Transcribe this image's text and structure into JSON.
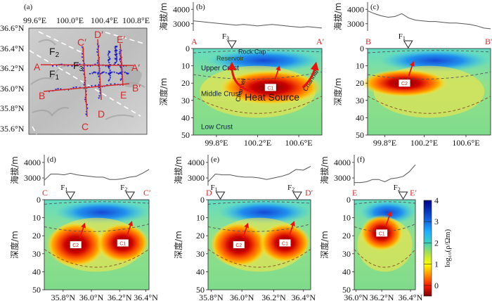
{
  "figure": {
    "panels": {
      "a": {
        "label": "(a)",
        "lon_ticks": [
          "99.6°E",
          "100.0°E",
          "100.4°E",
          "100.8°E"
        ],
        "lat_ticks": [
          "36.6°N",
          "36.4°N",
          "36.2°N",
          "36.0°N",
          "35.8°N",
          "35.6°N"
        ],
        "faults": [
          "F2",
          "F1",
          "F3"
        ],
        "profiles": [
          {
            "start": "A",
            "end": "A′"
          },
          {
            "start": "B",
            "end": "B′"
          },
          {
            "start": "C",
            "end": "C′"
          },
          {
            "start": "D",
            "end": "D′"
          },
          {
            "start": "E",
            "end": "E′"
          }
        ],
        "colors": {
          "profile": "#d42a2a",
          "station": "#1a1ad0",
          "fault": "#ffffff"
        }
      },
      "b": {
        "label": "(b)",
        "start": "A",
        "end": "A′",
        "elev_ticks": [
          "4000",
          "3000"
        ],
        "depth_ticks": [
          "0",
          "10",
          "20",
          "30",
          "40",
          "50"
        ],
        "x_ticks": [
          "99.8°E",
          "100.2°E",
          "100.6°E"
        ],
        "elev_profile": [
          3200,
          3150,
          3100,
          3050,
          3000,
          2950,
          2900,
          2950,
          2900,
          2850,
          2900,
          2950,
          2900,
          2850,
          2800,
          2750,
          2800,
          2750,
          2700
        ],
        "fault_markers": [
          {
            "name": "F",
            "sub": "3"
          }
        ],
        "annotations": [
          "Rock Cap",
          "Reservoir",
          "Upper Crust",
          "Middle Crust",
          "Low Crust",
          "Channel",
          "Channel",
          "Heat Source"
        ],
        "conductor": "C1"
      },
      "c": {
        "label": "(c)",
        "start": "B",
        "end": "B′",
        "elev_ticks": [
          "4000",
          "3000"
        ],
        "depth_ticks": [
          "0",
          "10",
          "20",
          "30",
          "40",
          "50"
        ],
        "x_ticks": [
          "99.8°E",
          "100.2°E",
          "100.6°E"
        ],
        "elev_profile": [
          3900,
          3700,
          3550,
          3450,
          3500,
          3700,
          3400,
          3250,
          3200,
          3150,
          3150,
          3100,
          3050,
          3050,
          3000,
          2950,
          2850,
          2700,
          2650
        ],
        "fault_markers": [
          {
            "name": "F",
            "sub": "1"
          }
        ],
        "conductor": "C2"
      },
      "d": {
        "label": "(d)",
        "start": "C",
        "end": "C′",
        "elev_ticks": [
          "4000",
          "3000"
        ],
        "depth_ticks": [
          "0",
          "10",
          "20",
          "30",
          "40",
          "50"
        ],
        "x_ticks": [
          "35.8°N",
          "36.0°N",
          "36.2°N",
          "36.4°N"
        ],
        "elev_profile": [
          2850,
          3250,
          3250,
          3200,
          3300,
          3200,
          3150,
          3100,
          3050,
          3050,
          2900,
          2900,
          2950,
          3050,
          3100,
          3300,
          3550
        ],
        "fault_markers": [
          {
            "name": "F",
            "sub": "1"
          },
          {
            "name": "F",
            "sub": "2"
          }
        ],
        "conductors": [
          "C2",
          "C1"
        ]
      },
      "e": {
        "label": "(e)",
        "start": "D",
        "end": "D′",
        "elev_ticks": [
          "4000",
          "3000"
        ],
        "depth_ticks": [
          "0",
          "10",
          "20",
          "30",
          "40",
          "50"
        ],
        "x_ticks": [
          "35.8°N",
          "36.0°N",
          "36.2°N",
          "36.4°N"
        ],
        "elev_profile": [
          2750,
          3250,
          3200,
          3200,
          3100,
          3050,
          3050,
          3000,
          2900,
          3000,
          3100,
          3250,
          3550,
          3500,
          3750
        ],
        "fault_markers": [
          {
            "name": "F",
            "sub": "1"
          },
          {
            "name": "F",
            "sub": "2"
          }
        ],
        "conductors": [
          "C2",
          "C1"
        ]
      },
      "f": {
        "label": "(f)",
        "start": "E",
        "end": "E′",
        "elev_ticks": [
          "4000",
          "3000"
        ],
        "depth_ticks": [
          "0",
          "10",
          "20",
          "30",
          "40",
          "50"
        ],
        "x_ticks": [
          "36.0°N",
          "36.2°N",
          "36.4°N"
        ],
        "elev_profile": [
          2700,
          2700,
          2750,
          2900,
          2900,
          2750,
          2950,
          3000,
          3100,
          3400,
          3850
        ],
        "fault_markers": [
          {
            "name": "F",
            "sub": "2"
          }
        ],
        "conductor": "C1"
      }
    },
    "y_axis_elev_label": "海拔/m",
    "y_axis_depth_label": "深度/m",
    "colorbar": {
      "ticks": [
        "4",
        "3",
        "2",
        "1",
        "0"
      ],
      "label": "log₁₀(ρ/Ωm)",
      "range": [
        -0.5,
        4
      ],
      "colors": [
        "#8b0000",
        "#ff1a00",
        "#ff9900",
        "#ffff00",
        "#9be25a",
        "#3fd3b0",
        "#1aa0ff",
        "#1040e0",
        "#00008b"
      ]
    }
  }
}
